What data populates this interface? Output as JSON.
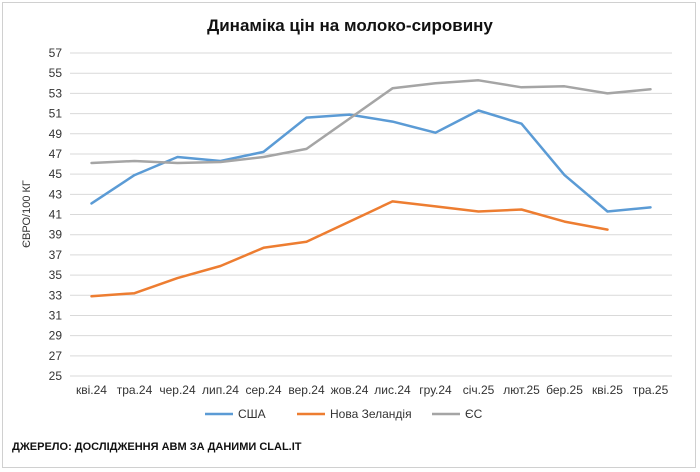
{
  "chart_data": {
    "type": "line",
    "title": "Динаміка цін на молоко-сировину",
    "ylabel": "ЄВРО/100 КГ",
    "xlabel": "",
    "ylim": [
      25,
      57
    ],
    "yticks": [
      25,
      27,
      29,
      31,
      33,
      35,
      37,
      39,
      41,
      43,
      45,
      47,
      49,
      51,
      53,
      55,
      57
    ],
    "categories": [
      "кві.24",
      "тра.24",
      "чер.24",
      "лип.24",
      "сер.24",
      "вер.24",
      "жов.24",
      "лис.24",
      "гру.24",
      "січ.25",
      "лют.25",
      "бер.25",
      "кві.25",
      "тра.25"
    ],
    "grid": true,
    "legend_position": "bottom",
    "series": [
      {
        "name": "США",
        "color": "#5b9bd5",
        "values": [
          42.1,
          44.9,
          46.7,
          46.3,
          47.2,
          50.6,
          50.9,
          50.2,
          49.1,
          51.3,
          50.0,
          44.9,
          41.3,
          41.7
        ]
      },
      {
        "name": "Нова Зеландія",
        "color": "#ed7d31",
        "values": [
          32.9,
          33.2,
          34.7,
          35.9,
          37.7,
          38.3,
          40.3,
          42.3,
          41.8,
          41.3,
          41.5,
          40.3,
          39.5,
          null
        ]
      },
      {
        "name": "ЄС",
        "color": "#a5a5a5",
        "values": [
          46.1,
          46.3,
          46.1,
          46.2,
          46.7,
          47.5,
          50.5,
          53.5,
          54.0,
          54.3,
          53.6,
          53.7,
          53.0,
          53.4
        ]
      }
    ]
  },
  "source": "ДЖЕРЕЛО: ДОСЛІДЖЕННЯ АВМ ЗА ДАНИМИ CLAL.IT"
}
